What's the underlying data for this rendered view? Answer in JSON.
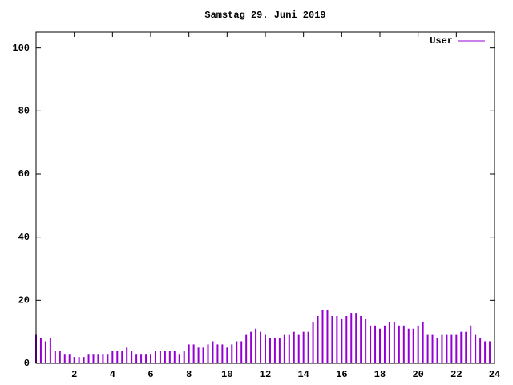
{
  "chart_data": {
    "type": "impulse",
    "title": "Samstag 29. Juni 2019",
    "x": [
      0,
      0.25,
      0.5,
      0.75,
      1,
      1.25,
      1.5,
      1.75,
      2,
      2.25,
      2.5,
      2.75,
      3,
      3.25,
      3.5,
      3.75,
      4,
      4.25,
      4.5,
      4.75,
      5,
      5.25,
      5.5,
      5.75,
      6,
      6.25,
      6.5,
      6.75,
      7,
      7.25,
      7.5,
      7.75,
      8,
      8.25,
      8.5,
      8.75,
      9,
      9.25,
      9.5,
      9.75,
      10,
      10.25,
      10.5,
      10.75,
      11,
      11.25,
      11.5,
      11.75,
      12,
      12.25,
      12.5,
      12.75,
      13,
      13.25,
      13.5,
      13.75,
      14,
      14.25,
      14.5,
      14.75,
      15,
      15.25,
      15.5,
      15.75,
      16,
      16.25,
      16.5,
      16.75,
      17,
      17.25,
      17.5,
      17.75,
      18,
      18.25,
      18.5,
      18.75,
      19,
      19.25,
      19.5,
      19.75,
      20,
      20.25,
      20.5,
      20.75,
      21,
      21.25,
      21.5,
      21.75,
      22,
      22.25,
      22.5,
      22.75,
      23,
      23.25,
      23.5,
      23.75
    ],
    "series": [
      {
        "name": "User",
        "color": "#9400d3",
        "values": [
          9,
          8,
          7,
          8,
          4,
          4,
          3,
          3,
          2,
          2,
          2,
          3,
          3,
          3,
          3,
          3,
          4,
          4,
          4,
          5,
          4,
          3,
          3,
          3,
          3,
          4,
          4,
          4,
          4,
          4,
          3,
          4,
          6,
          6,
          5,
          5,
          6,
          7,
          6,
          6,
          5,
          6,
          7,
          7,
          9,
          10,
          11,
          10,
          9,
          8,
          8,
          8,
          9,
          9,
          10,
          9,
          10,
          10,
          13,
          15,
          17,
          17,
          15,
          15,
          14,
          15,
          16,
          16,
          15,
          14,
          12,
          12,
          11,
          12,
          13,
          13,
          12,
          12,
          11,
          11,
          12,
          13,
          9,
          9,
          8,
          9,
          9,
          9,
          9,
          10,
          10,
          12,
          9,
          8,
          7,
          7
        ]
      }
    ],
    "xlim": [
      0,
      24
    ],
    "xticks": [
      2,
      4,
      6,
      8,
      10,
      12,
      14,
      16,
      18,
      20,
      22,
      24
    ],
    "ylim": [
      0,
      105
    ],
    "yticks": [
      0,
      20,
      40,
      60,
      80,
      100
    ],
    "legend": "top-right"
  }
}
